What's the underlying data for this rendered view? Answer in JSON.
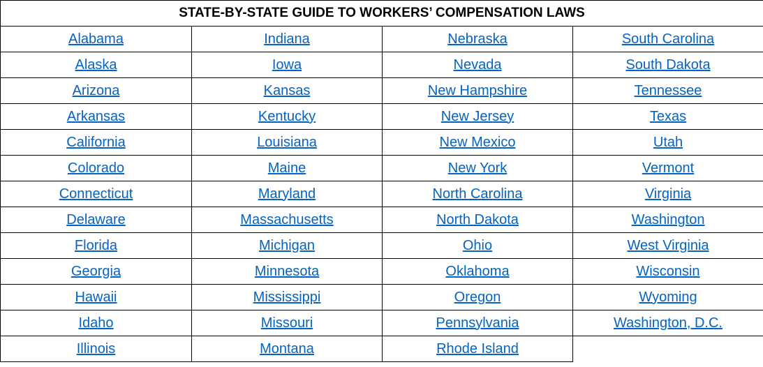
{
  "title": "STATE-BY-STATE GUIDE TO WORKERS’ COMPENSATION LAWS",
  "table": {
    "rows": [
      [
        "Alabama",
        "Indiana",
        "Nebraska",
        "South Carolina"
      ],
      [
        "Alaska",
        "Iowa",
        "Nevada",
        "South Dakota"
      ],
      [
        "Arizona",
        "Kansas",
        "New Hampshire",
        "Tennessee"
      ],
      [
        "Arkansas",
        "Kentucky",
        "New Jersey",
        "Texas"
      ],
      [
        "California",
        "Louisiana",
        "New Mexico",
        "Utah"
      ],
      [
        "Colorado",
        "Maine",
        "New York",
        "Vermont"
      ],
      [
        "Connecticut",
        "Maryland",
        "North Carolina",
        "Virginia"
      ],
      [
        "Delaware",
        "Massachusetts",
        "North Dakota",
        "Washington"
      ],
      [
        "Florida",
        "Michigan",
        "Ohio",
        "West Virginia"
      ],
      [
        "Georgia",
        "Minnesota",
        "Oklahoma",
        "Wisconsin"
      ],
      [
        "Hawaii",
        "Mississippi",
        "Oregon",
        "Wyoming"
      ],
      [
        "Idaho",
        "Missouri",
        "Pennsylvania",
        "Washington, D.C."
      ],
      [
        "Illinois",
        "Montana",
        "Rhode Island"
      ]
    ]
  }
}
